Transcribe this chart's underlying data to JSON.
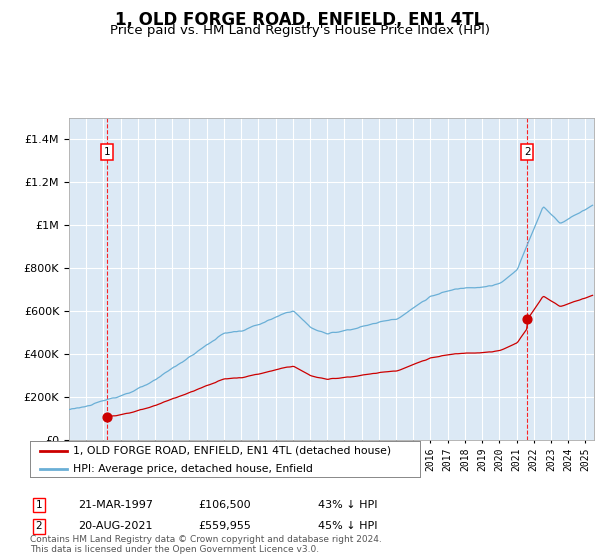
{
  "title": "1, OLD FORGE ROAD, ENFIELD, EN1 4TL",
  "subtitle": "Price paid vs. HM Land Registry's House Price Index (HPI)",
  "legend_line1": "1, OLD FORGE ROAD, ENFIELD, EN1 4TL (detached house)",
  "legend_line2": "HPI: Average price, detached house, Enfield",
  "transaction1_label": "1",
  "transaction1_date": "21-MAR-1997",
  "transaction1_price": "£106,500",
  "transaction1_hpi": "43% ↓ HPI",
  "transaction1_year": 1997.22,
  "transaction1_value": 106500,
  "transaction2_label": "2",
  "transaction2_date": "20-AUG-2021",
  "transaction2_price": "£559,955",
  "transaction2_hpi": "45% ↓ HPI",
  "transaction2_year": 2021.63,
  "transaction2_value": 559955,
  "footer": "Contains HM Land Registry data © Crown copyright and database right 2024.\nThis data is licensed under the Open Government Licence v3.0.",
  "price_color": "#cc0000",
  "hpi_color": "#6aafd6",
  "background_color": "#dce9f5",
  "ylim": [
    0,
    1500000
  ],
  "xlim_start": 1995.0,
  "xlim_end": 2025.5,
  "title_fontsize": 12,
  "subtitle_fontsize": 9.5
}
